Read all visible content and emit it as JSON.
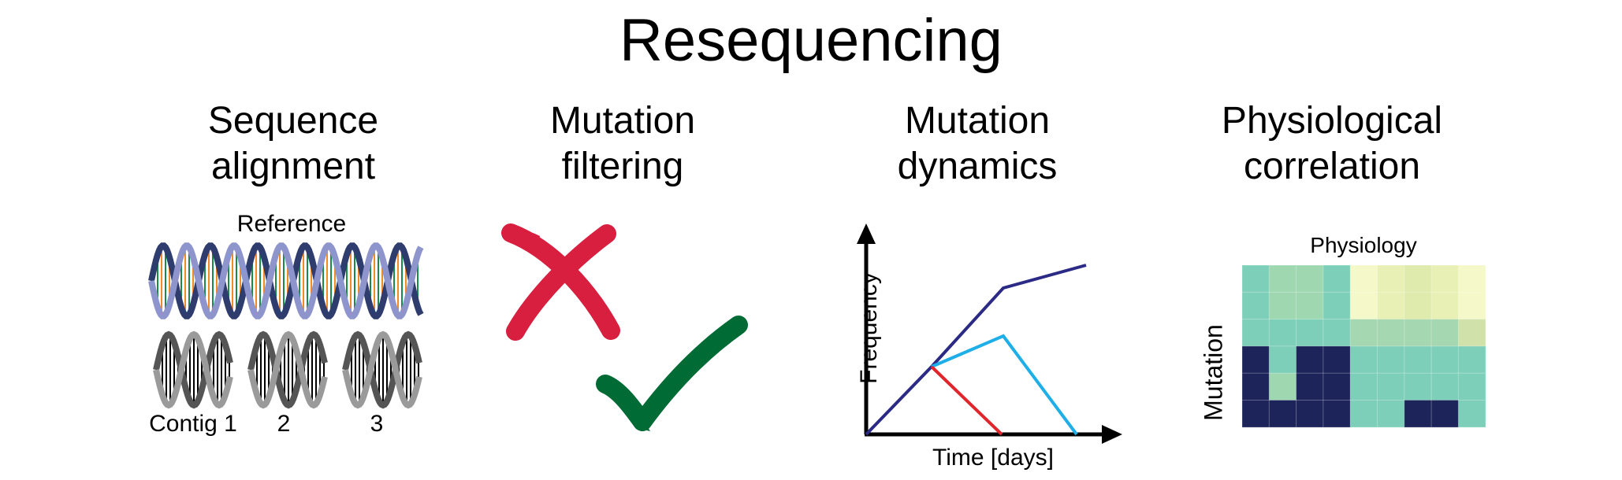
{
  "title": "Resequencing",
  "panels": [
    {
      "title_line1": "Sequence",
      "title_line2": "alignment"
    },
    {
      "title_line1": "Mutation",
      "title_line2": "filtering"
    },
    {
      "title_line1": "Mutation",
      "title_line2": "dynamics"
    },
    {
      "title_line1": "Physiological",
      "title_line2": "correlation"
    }
  ],
  "alignment": {
    "reference_label": "Reference",
    "contig_labels": [
      "Contig 1",
      "2",
      "3"
    ]
  },
  "filtering": {
    "reject_icon": "cross-icon",
    "accept_icon": "check-icon",
    "reject_color": "#d81f3f",
    "accept_color": "#006b35"
  },
  "dynamics": {
    "x_label": "Time [days]",
    "y_label": "Frequency",
    "line_colors": [
      "#2b2a85",
      "#1eaee8",
      "#e0252b"
    ]
  },
  "correlation": {
    "col_label": "Physiology",
    "row_label": "Mutation",
    "heatmap": [
      [
        1,
        2,
        2,
        1,
        8,
        7,
        6,
        7,
        8
      ],
      [
        1,
        2,
        2,
        1,
        8,
        7,
        6,
        7,
        8
      ],
      [
        1,
        1,
        1,
        1,
        3,
        3,
        3,
        3,
        5
      ],
      [
        0,
        1,
        0,
        0,
        1,
        1,
        1,
        1,
        1
      ],
      [
        0,
        2,
        0,
        0,
        1,
        1,
        1,
        1,
        1
      ],
      [
        0,
        0,
        0,
        0,
        1,
        1,
        0,
        0,
        1
      ]
    ],
    "palette": [
      "#1c2459",
      "#7ecfb9",
      "#9fd7b1",
      "#a5d7b0",
      "#b6dcb1",
      "#d0e2a9",
      "#dfeaad",
      "#e8f0b5",
      "#f5f8c8"
    ]
  }
}
